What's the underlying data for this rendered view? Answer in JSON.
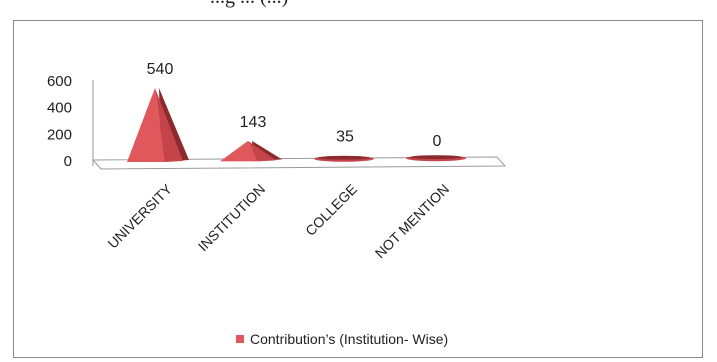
{
  "page_title": "...g ... (...)",
  "chart_data": {
    "type": "bar",
    "subtype": "3d-cone",
    "categories": [
      "UNIVERSITY",
      "INSTITUTION",
      "COLLEGE",
      "NOT MENTION"
    ],
    "series": [
      {
        "name": "Contribution’s  (Institution- Wise)",
        "values": [
          540,
          143,
          35,
          0
        ],
        "color": "#e0575c"
      }
    ],
    "data_labels": [
      "540",
      "143",
      "35",
      "0"
    ],
    "y_ticks": [
      "0",
      "200",
      "400",
      "600"
    ],
    "ylim": [
      0,
      600
    ],
    "grid": false,
    "legend_position": "bottom"
  }
}
